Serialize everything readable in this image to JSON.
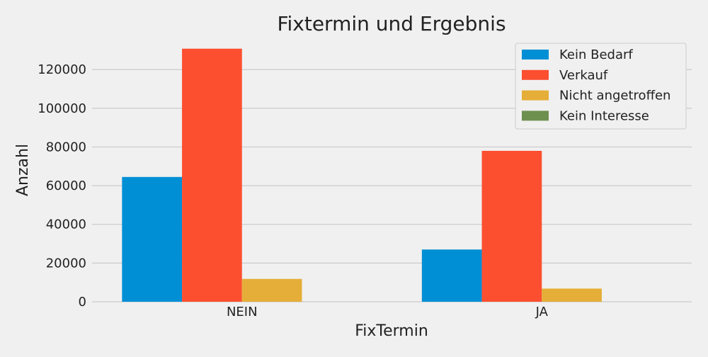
{
  "chart_data": {
    "type": "bar",
    "title": "Fixtermin und Ergebnis",
    "xlabel": "FixTermin",
    "ylabel": "Anzahl",
    "categories": [
      "NEIN",
      "JA"
    ],
    "ylim": [
      0,
      134000
    ],
    "yticks": [
      0,
      20000,
      40000,
      60000,
      80000,
      100000,
      120000
    ],
    "grid": true,
    "legend_position": "top-right",
    "series": [
      {
        "name": "Kein Bedarf",
        "color": "#008fd5",
        "values": [
          64500,
          27000
        ]
      },
      {
        "name": "Verkauf",
        "color": "#fc4f30",
        "values": [
          130800,
          78000
        ]
      },
      {
        "name": "Nicht angetroffen",
        "color": "#e5ae38",
        "values": [
          11800,
          6800
        ]
      },
      {
        "name": "Kein Interesse",
        "color": "#6d904f",
        "values": [
          0,
          0
        ]
      }
    ]
  }
}
